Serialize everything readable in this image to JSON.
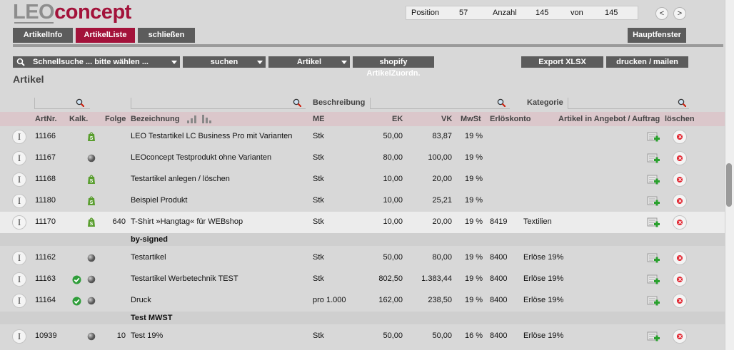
{
  "logo": {
    "part1": "LEO",
    "part2": "concept"
  },
  "position_box": {
    "position_label": "Position",
    "position_value": "57",
    "anzahl_label": "Anzahl",
    "anzahl_value": "145",
    "von_label": "von",
    "von_value": "145"
  },
  "nav": {
    "prev": "<",
    "next": ">"
  },
  "tabs": [
    {
      "label": "ArtikelInfo"
    },
    {
      "label": "ArtikelListe",
      "active": true
    },
    {
      "label": "schließen"
    }
  ],
  "hauptfenster_label": "Hauptfenster",
  "toolbar": {
    "quicksearch": "Schnellsuche ... bitte wählen ...",
    "search": "suchen",
    "type": "Artikel",
    "shopify": "shopify ArtikelZuordn.",
    "export": "Export XLSX",
    "print": "drucken / mailen"
  },
  "section_title": "Artikel",
  "filters": {
    "beschreibung": "Beschreibung",
    "kategorie": "Kategorie"
  },
  "columns": {
    "artnr": "ArtNr.",
    "kalk": "Kalk.",
    "folge": "Folge",
    "bezeichnung": "Bezeichnung",
    "me": "ME",
    "ek": "EK",
    "vk": "VK",
    "mwst": "MwSt",
    "erloeskonto": "Erlöskonto",
    "angebot": "Artikel in Angebot / Auftrag",
    "loeschen": "löschen"
  },
  "rows": [
    {
      "artnr": "11166",
      "kalk": "",
      "icon": "shopify",
      "folge": "",
      "bez": "LEO Testartikel LC Business Pro mit Varianten",
      "me": "Stk",
      "ek": "50,00",
      "vk": "83,87",
      "mwst": "19 %",
      "konto": "",
      "kat": ""
    },
    {
      "artnr": "11167",
      "kalk": "",
      "icon": "grey-dot",
      "folge": "",
      "bez": "LEOconcept Testprodukt ohne Varianten",
      "me": "Stk",
      "ek": "80,00",
      "vk": "100,00",
      "mwst": "19 %",
      "konto": "",
      "kat": ""
    },
    {
      "artnr": "11168",
      "kalk": "",
      "icon": "shopify",
      "folge": "",
      "bez": "Testartikel anlegen / löschen",
      "me": "Stk",
      "ek": "10,00",
      "vk": "20,00",
      "mwst": "19 %",
      "konto": "",
      "kat": ""
    },
    {
      "artnr": "11180",
      "kalk": "",
      "icon": "shopify",
      "folge": "",
      "bez": "Beispiel Produkt",
      "me": "Stk",
      "ek": "10,00",
      "vk": "25,21",
      "mwst": "19 %",
      "konto": "",
      "kat": ""
    },
    {
      "artnr": "11170",
      "kalk": "",
      "icon": "shopify",
      "folge": "640",
      "bez": "T-Shirt »Hangtag« für WEBshop",
      "me": "Stk",
      "ek": "10,00",
      "vk": "20,00",
      "mwst": "19 %",
      "konto": "8419",
      "kat": "Textilien"
    },
    {
      "artnr": "11162",
      "kalk": "",
      "icon": "grey-dot",
      "folge": "",
      "bez": "Testartikel",
      "me": "Stk",
      "ek": "50,00",
      "vk": "80,00",
      "mwst": "19 %",
      "konto": "8400",
      "kat": "Erlöse 19%"
    },
    {
      "artnr": "11163",
      "kalk": "check",
      "icon": "grey-dot",
      "folge": "",
      "bez": "Testartikel Werbetechnik TEST",
      "me": "Stk",
      "ek": "802,50",
      "vk": "1.383,44",
      "mwst": "19 %",
      "konto": "8400",
      "kat": "Erlöse 19%"
    },
    {
      "artnr": "11164",
      "kalk": "check",
      "icon": "grey-dot",
      "folge": "",
      "bez": "Druck",
      "me": "pro 1.000",
      "ek": "162,00",
      "vk": "238,50",
      "mwst": "19 %",
      "konto": "8400",
      "kat": "Erlöse 19%"
    },
    {
      "artnr": "10939",
      "kalk": "",
      "icon": "grey-dot",
      "folge": "10",
      "bez": "Test 19%",
      "me": "Stk",
      "ek": "50,00",
      "vk": "50,00",
      "mwst": "16 %",
      "konto": "8400",
      "kat": "Erlöse 19%"
    }
  ],
  "groups": [
    "by-signed",
    "Test MWST"
  ],
  "colors": {
    "brand": "#a3123a",
    "dark_button": "#5c5c5c",
    "header_row": "#dbc7cb",
    "delete": "#e0202b",
    "shopify": "#5a9e2f"
  }
}
